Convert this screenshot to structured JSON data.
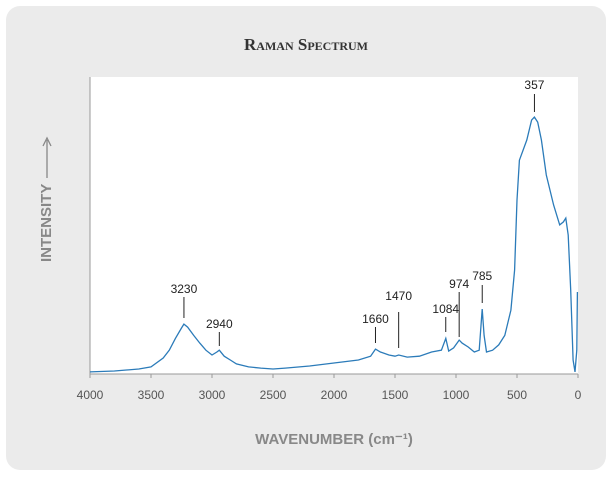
{
  "chart_data": {
    "type": "line",
    "title": "Raman Spectrum",
    "x_label": "WAVENUMBER (cm⁻¹)",
    "y_label": "INTENSITY",
    "xlim": [
      4000,
      0
    ],
    "xticks": [
      4000,
      3500,
      3000,
      2500,
      2000,
      1500,
      1000,
      500,
      0
    ],
    "ylim": [
      0,
      100
    ],
    "series": [
      {
        "color": "#2b7bb9",
        "x": [
          4000,
          3800,
          3600,
          3500,
          3400,
          3350,
          3300,
          3250,
          3230,
          3200,
          3150,
          3100,
          3050,
          3000,
          2960,
          2940,
          2900,
          2850,
          2800,
          2700,
          2600,
          2500,
          2400,
          2200,
          2000,
          1800,
          1700,
          1660,
          1620,
          1550,
          1500,
          1470,
          1400,
          1300,
          1200,
          1120,
          1084,
          1060,
          1020,
          974,
          950,
          900,
          850,
          810,
          785,
          770,
          750,
          700,
          650,
          600,
          550,
          520,
          500,
          480,
          450,
          420,
          380,
          357,
          330,
          300,
          260,
          200,
          150,
          120,
          100,
          80,
          60,
          40,
          25,
          10,
          5
        ],
        "values": [
          0.7,
          1,
          1.7,
          2.4,
          5.4,
          8,
          12,
          15.5,
          16.8,
          15.8,
          13,
          10.4,
          8,
          6.4,
          7.4,
          8,
          6,
          4.7,
          3.4,
          2.4,
          2,
          1.7,
          2,
          2.7,
          3.7,
          4.7,
          6,
          8.4,
          7.4,
          6.4,
          6,
          6.4,
          5.7,
          6,
          7.4,
          8,
          12,
          7.7,
          8.8,
          11.4,
          10.4,
          9.1,
          7.4,
          8,
          21.9,
          13,
          7.4,
          8,
          9.8,
          13,
          21.5,
          35,
          58.6,
          72,
          75.4,
          78.8,
          85.5,
          86.5,
          84.8,
          78.8,
          67,
          56.9,
          50.2,
          51.2,
          52.5,
          46.8,
          28.3,
          4.7,
          0.7,
          8,
          27.6
        ]
      }
    ],
    "peaks": [
      3230,
      2940,
      1660,
      1470,
      1084,
      974,
      785,
      357
    ]
  }
}
